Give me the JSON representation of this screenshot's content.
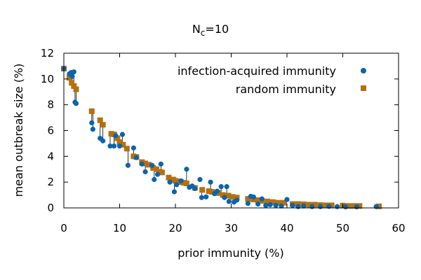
{
  "chart_data": {
    "type": "scatter",
    "title": "N",
    "title_subscript": "c",
    "title_suffix": "=10",
    "xlabel": "prior immunity (%)",
    "ylabel": "mean outbreak size (%)",
    "xlim": [
      0,
      60
    ],
    "ylim": [
      0,
      12
    ],
    "xticks": [
      0,
      10,
      20,
      30,
      40,
      50,
      60
    ],
    "yticks": [
      0,
      2,
      4,
      6,
      8,
      10,
      12
    ],
    "legend_position": "top-right",
    "grid": false,
    "series": [
      {
        "name": "infection-acquired immunity",
        "color": "#0a64b0",
        "marker": "circle",
        "points": [
          [
            0,
            10.8
          ],
          [
            1.0,
            10.4
          ],
          [
            1.3,
            10.5
          ],
          [
            1.5,
            10.2
          ],
          [
            1.8,
            10.55
          ],
          [
            2.0,
            8.2
          ],
          [
            2.2,
            8.1
          ],
          [
            5.0,
            6.6
          ],
          [
            5.2,
            6.1
          ],
          [
            6.5,
            5.4
          ],
          [
            7.0,
            5.2
          ],
          [
            8.3,
            4.8
          ],
          [
            9.0,
            4.8
          ],
          [
            9.3,
            5.6
          ],
          [
            10.0,
            4.8
          ],
          [
            10.5,
            5.7
          ],
          [
            11.5,
            3.3
          ],
          [
            12.5,
            4.65
          ],
          [
            13.0,
            3.9
          ],
          [
            14.0,
            3.4
          ],
          [
            14.6,
            2.8
          ],
          [
            15.8,
            3.3
          ],
          [
            16.2,
            2.2
          ],
          [
            16.8,
            2.6
          ],
          [
            17.4,
            3.4
          ],
          [
            19.0,
            2.0
          ],
          [
            19.8,
            1.25
          ],
          [
            20.2,
            1.8
          ],
          [
            21.0,
            2.1
          ],
          [
            22.0,
            3.0
          ],
          [
            22.5,
            1.6
          ],
          [
            23.0,
            1.7
          ],
          [
            23.5,
            1.5
          ],
          [
            24.4,
            2.2
          ],
          [
            24.7,
            0.8
          ],
          [
            25.5,
            0.85
          ],
          [
            26.3,
            2.0
          ],
          [
            27.0,
            1.1
          ],
          [
            27.5,
            1.3
          ],
          [
            28.2,
            1.65
          ],
          [
            28.8,
            0.8
          ],
          [
            29.2,
            1.65
          ],
          [
            29.6,
            0.5
          ],
          [
            30.5,
            0.45
          ],
          [
            31.0,
            0.6
          ],
          [
            33.0,
            0.35
          ],
          [
            33.5,
            0.9
          ],
          [
            34.0,
            0.85
          ],
          [
            34.8,
            0.3
          ],
          [
            35.5,
            0.7
          ],
          [
            36.2,
            0.2
          ],
          [
            37.0,
            0.25
          ],
          [
            38.0,
            0.2
          ],
          [
            39.0,
            0.15
          ],
          [
            40.0,
            0.65
          ],
          [
            41.0,
            0.2
          ],
          [
            42.0,
            0.1
          ],
          [
            43.0,
            0.15
          ],
          [
            44.5,
            0.1
          ],
          [
            46.0,
            0.1
          ],
          [
            47.5,
            0.12
          ],
          [
            49.0,
            0.1
          ],
          [
            50.5,
            0.08
          ],
          [
            52.5,
            0.08
          ],
          [
            56.0,
            0.1
          ]
        ]
      },
      {
        "name": "random immunity",
        "color": "#b5700e",
        "marker": "square",
        "points": [
          [
            0,
            10.8
          ],
          [
            1.0,
            10.1
          ],
          [
            1.4,
            9.7
          ],
          [
            1.8,
            9.45
          ],
          [
            2.2,
            9.2
          ],
          [
            5.0,
            7.5
          ],
          [
            6.5,
            6.8
          ],
          [
            7.0,
            6.45
          ],
          [
            8.5,
            5.75
          ],
          [
            9.0,
            5.7
          ],
          [
            9.6,
            5.4
          ],
          [
            10.0,
            5.1
          ],
          [
            10.6,
            4.9
          ],
          [
            11.3,
            4.6
          ],
          [
            12.5,
            4.0
          ],
          [
            13.0,
            3.95
          ],
          [
            14.0,
            3.55
          ],
          [
            14.6,
            3.45
          ],
          [
            15.2,
            3.35
          ],
          [
            16.0,
            3.1
          ],
          [
            16.6,
            3.0
          ],
          [
            17.2,
            2.8
          ],
          [
            17.6,
            2.75
          ],
          [
            18.8,
            2.35
          ],
          [
            19.6,
            2.2
          ],
          [
            20.0,
            2.1
          ],
          [
            20.5,
            2.05
          ],
          [
            21.0,
            2.0
          ],
          [
            21.5,
            1.95
          ],
          [
            22.0,
            1.9
          ],
          [
            23.5,
            1.55
          ],
          [
            24.8,
            1.4
          ],
          [
            26.0,
            1.3
          ],
          [
            26.5,
            1.25
          ],
          [
            27.2,
            1.2
          ],
          [
            27.8,
            1.15
          ],
          [
            28.5,
            1.0
          ],
          [
            29.5,
            0.95
          ],
          [
            30.3,
            0.85
          ],
          [
            31.0,
            0.8
          ],
          [
            33.0,
            0.7
          ],
          [
            34.0,
            0.65
          ],
          [
            34.8,
            0.6
          ],
          [
            35.5,
            0.55
          ],
          [
            36.5,
            0.5
          ],
          [
            37.5,
            0.45
          ],
          [
            38.5,
            0.4
          ],
          [
            39.5,
            0.4
          ],
          [
            41.0,
            0.3
          ],
          [
            42.0,
            0.3
          ],
          [
            43.0,
            0.28
          ],
          [
            44.0,
            0.25
          ],
          [
            45.0,
            0.25
          ],
          [
            46.0,
            0.22
          ],
          [
            47.0,
            0.2
          ],
          [
            48.0,
            0.2
          ],
          [
            50.0,
            0.18
          ],
          [
            51.0,
            0.15
          ],
          [
            52.0,
            0.15
          ],
          [
            53.0,
            0.15
          ],
          [
            56.5,
            0.12
          ]
        ]
      }
    ]
  }
}
